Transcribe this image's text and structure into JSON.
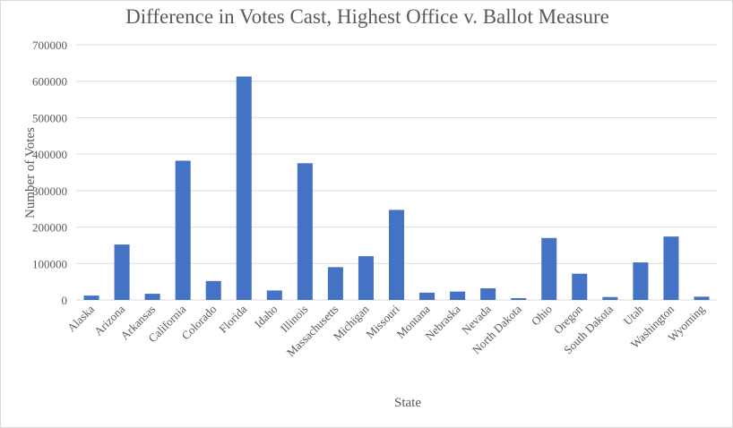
{
  "chart_data": {
    "type": "bar",
    "title": "Difference in Votes Cast, Highest Office v. Ballot Measure",
    "xlabel": "State",
    "ylabel": "Number of Votes",
    "ylim": [
      0,
      700000
    ],
    "yticks": [
      0,
      100000,
      200000,
      300000,
      400000,
      500000,
      600000,
      700000
    ],
    "ytick_labels": [
      "0",
      "100000",
      "200000",
      "300000",
      "400000",
      "500000",
      "600000",
      "700000"
    ],
    "grid": true,
    "legend": "none",
    "bar_color": "#4472c4",
    "categories": [
      "Alaska",
      "Arizona",
      "Arkansas",
      "California",
      "Colorado",
      "Florida",
      "Idaho",
      "Illinois",
      "Massachusetts",
      "Michigan",
      "Missouri",
      "Montana",
      "Nebraska",
      "Nevada",
      "North Dakota",
      "Ohio",
      "Oregon",
      "South Dakota",
      "Utah",
      "Washington",
      "Wyoming"
    ],
    "values": [
      12000,
      152000,
      17000,
      382000,
      52000,
      613000,
      26000,
      375000,
      90000,
      120000,
      247000,
      20000,
      23000,
      32000,
      5000,
      170000,
      72000,
      8000,
      103000,
      174000,
      9000
    ]
  }
}
